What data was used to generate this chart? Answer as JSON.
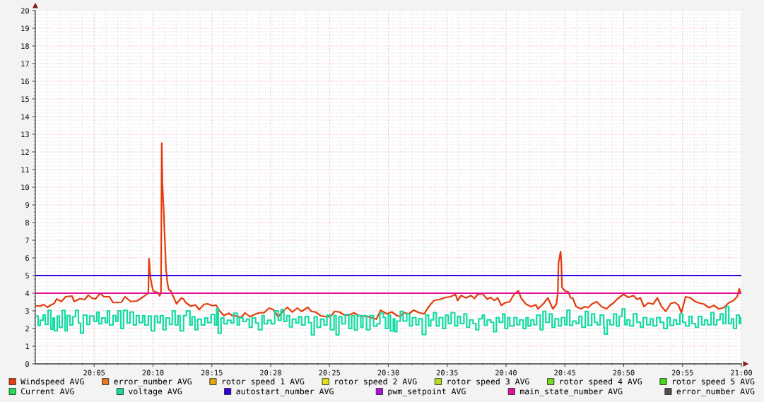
{
  "chart_data": {
    "type": "line",
    "xlim": [
      20.0,
      21.0
    ],
    "xticks": [
      {
        "value": 20.083333,
        "label": "20:05"
      },
      {
        "value": 20.166667,
        "label": "20:10"
      },
      {
        "value": 20.25,
        "label": "20:15"
      },
      {
        "value": 20.333333,
        "label": "20:20"
      },
      {
        "value": 20.416667,
        "label": "20:25"
      },
      {
        "value": 20.5,
        "label": "20:30"
      },
      {
        "value": 20.583333,
        "label": "20:35"
      },
      {
        "value": 20.666667,
        "label": "20:40"
      },
      {
        "value": 20.75,
        "label": "20:45"
      },
      {
        "value": 20.833333,
        "label": "20:50"
      },
      {
        "value": 20.916667,
        "label": "20:55"
      },
      {
        "value": 21.0,
        "label": "21:00"
      }
    ],
    "ylim": [
      0,
      20
    ],
    "yticks": [
      0,
      1,
      2,
      3,
      4,
      5,
      6,
      7,
      8,
      9,
      10,
      11,
      12,
      13,
      14,
      15,
      16,
      17,
      18,
      19,
      20
    ],
    "grid": true,
    "legend": "bottom",
    "series": [
      {
        "name": "Windspeed AVG",
        "color": "#e23d0f",
        "x": [
          20.0,
          20.007,
          20.012,
          20.017,
          20.022,
          20.027,
          20.03,
          20.037,
          20.043,
          20.052,
          20.055,
          20.063,
          20.07,
          20.075,
          20.08,
          20.085,
          20.092,
          20.097,
          20.105,
          20.11,
          20.117,
          20.122,
          20.127,
          20.135,
          20.144,
          20.149,
          20.154,
          20.157,
          20.16,
          20.161,
          20.163,
          20.165,
          20.167,
          20.17,
          20.173,
          20.176,
          20.178,
          20.179,
          20.18,
          20.182,
          20.183,
          20.184,
          20.185,
          20.187,
          20.189,
          20.192,
          20.194,
          20.197,
          20.2,
          20.204,
          20.207,
          20.21,
          20.213,
          20.22,
          20.227,
          20.232,
          20.239,
          20.244,
          20.251,
          20.256,
          20.261,
          20.267,
          20.274,
          20.279,
          20.286,
          20.291,
          20.297,
          20.304,
          20.311,
          20.317,
          20.324,
          20.331,
          20.337,
          20.344,
          20.351,
          20.357,
          20.364,
          20.371,
          20.377,
          20.386,
          20.391,
          20.397,
          20.404,
          20.411,
          20.418,
          20.424,
          20.431,
          20.438,
          20.444,
          20.451,
          20.458,
          20.464,
          20.471,
          20.483,
          20.489,
          20.498,
          20.505,
          20.512,
          20.517,
          20.522,
          20.529,
          20.536,
          20.543,
          20.551,
          20.555,
          20.56,
          20.565,
          20.574,
          20.581,
          20.588,
          20.595,
          20.598,
          20.603,
          20.61,
          20.617,
          20.622,
          20.627,
          20.634,
          20.64,
          20.645,
          20.65,
          20.655,
          20.66,
          20.665,
          20.672,
          20.678,
          20.684,
          20.688,
          20.695,
          20.702,
          20.709,
          20.712,
          20.719,
          20.726,
          20.733,
          20.738,
          20.74,
          20.741,
          20.744,
          20.745,
          20.746,
          20.75,
          20.755,
          20.758,
          20.761,
          20.766,
          20.773,
          20.778,
          20.783,
          20.788,
          20.795,
          20.802,
          20.809,
          20.814,
          20.819,
          20.824,
          20.833,
          20.84,
          20.847,
          20.852,
          20.857,
          20.862,
          20.868,
          20.875,
          20.881,
          20.887,
          20.893,
          20.9,
          20.906,
          20.911,
          20.915,
          20.921,
          20.928,
          20.935,
          20.94,
          20.947,
          20.954,
          20.961,
          20.968,
          20.975,
          20.982,
          20.989,
          20.994,
          20.997,
          20.999
        ],
        "values": [
          3.29,
          3.27,
          3.36,
          3.2,
          3.33,
          3.43,
          3.67,
          3.53,
          3.8,
          3.84,
          3.53,
          3.69,
          3.64,
          3.89,
          3.73,
          3.67,
          4.0,
          3.8,
          3.8,
          3.47,
          3.47,
          3.49,
          3.8,
          3.53,
          3.56,
          3.69,
          3.83,
          3.93,
          4.0,
          5.96,
          4.9,
          4.45,
          4.13,
          4.07,
          4.05,
          3.85,
          4.0,
          12.5,
          10.2,
          8.5,
          7.4,
          6.5,
          5.4,
          4.6,
          4.2,
          4.13,
          3.93,
          3.67,
          3.4,
          3.6,
          3.73,
          3.67,
          3.47,
          3.27,
          3.33,
          3.07,
          3.37,
          3.4,
          3.29,
          3.33,
          3.0,
          2.73,
          2.87,
          2.73,
          2.71,
          2.6,
          2.89,
          2.67,
          2.8,
          2.89,
          2.89,
          3.16,
          3.07,
          2.67,
          3.0,
          3.2,
          2.93,
          3.16,
          2.97,
          3.2,
          2.97,
          2.93,
          2.73,
          2.67,
          2.67,
          2.97,
          2.93,
          2.76,
          2.76,
          2.89,
          2.73,
          2.71,
          2.67,
          2.53,
          3.03,
          2.83,
          2.94,
          2.73,
          2.69,
          2.9,
          2.83,
          3.04,
          2.9,
          2.83,
          3.11,
          3.38,
          3.59,
          3.66,
          3.76,
          3.8,
          3.94,
          3.59,
          3.87,
          3.73,
          3.87,
          3.7,
          3.96,
          3.94,
          3.66,
          3.76,
          3.59,
          3.73,
          3.31,
          3.45,
          3.52,
          3.94,
          4.14,
          3.73,
          3.38,
          3.24,
          3.34,
          3.11,
          3.38,
          3.73,
          3.11,
          3.38,
          4.0,
          5.73,
          6.36,
          5.73,
          4.33,
          4.13,
          4.07,
          3.73,
          3.73,
          3.24,
          3.11,
          3.24,
          3.18,
          3.38,
          3.52,
          3.24,
          3.11,
          3.31,
          3.45,
          3.66,
          3.94,
          3.76,
          3.87,
          3.66,
          3.73,
          3.24,
          3.45,
          3.38,
          3.73,
          3.24,
          2.97,
          3.42,
          3.48,
          3.31,
          2.9,
          3.8,
          3.73,
          3.52,
          3.45,
          3.38,
          3.18,
          3.31,
          3.11,
          3.18,
          3.45,
          3.59,
          3.8,
          4.25,
          4.0
        ]
      },
      {
        "name": "error_number AVG",
        "color": "#e8791a"
      },
      {
        "name": "rotor speed 1 AVG",
        "color": "#e0a90e"
      },
      {
        "name": "rotor speed 2 AVG",
        "color": "#e2e214"
      },
      {
        "name": "rotor speed 3 AVG",
        "color": "#b2e11c"
      },
      {
        "name": "rotor speed 4 AVG",
        "color": "#74d922"
      },
      {
        "name": "rotor speed 5 AVG",
        "color": "#3fdc18"
      },
      {
        "name": "Current AVG",
        "color": "#1fe04f"
      },
      {
        "name": "voltage AVG",
        "color": "#12dba3",
        "type": "step",
        "x": [
          20.002,
          20.004,
          20.007,
          20.011,
          20.014,
          20.018,
          20.022,
          20.025,
          20.027,
          20.031,
          20.034,
          20.038,
          20.042,
          20.045,
          20.049,
          20.053,
          20.057,
          20.061,
          20.064,
          20.068,
          20.073,
          20.077,
          20.083,
          20.087,
          20.09,
          20.094,
          20.099,
          20.102,
          20.105,
          20.11,
          20.114,
          20.117,
          20.121,
          20.125,
          20.13,
          20.134,
          20.139,
          20.143,
          20.147,
          20.152,
          20.155,
          20.16,
          20.164,
          20.169,
          20.173,
          20.177,
          20.181,
          20.185,
          20.19,
          20.194,
          20.198,
          20.202,
          20.205,
          20.21,
          20.214,
          20.219,
          20.222,
          20.226,
          20.23,
          20.235,
          20.24,
          20.244,
          20.249,
          20.254,
          20.257,
          20.259,
          20.263,
          20.267,
          20.272,
          20.277,
          20.281,
          20.286,
          20.289,
          20.294,
          20.299,
          20.303,
          20.307,
          20.312,
          20.316,
          20.321,
          20.324,
          20.329,
          20.334,
          20.339,
          20.344,
          20.348,
          20.352,
          20.356,
          20.36,
          20.364,
          20.369,
          20.373,
          20.377,
          20.382,
          20.387,
          20.391,
          20.395,
          20.399,
          20.404,
          20.409,
          20.413,
          20.418,
          20.423,
          20.426,
          20.43,
          20.434,
          20.439,
          20.444,
          20.448,
          20.452,
          20.456,
          20.461,
          20.464,
          20.469,
          20.474,
          20.479,
          20.484,
          20.488,
          20.493,
          20.496,
          20.5,
          20.503,
          20.507,
          20.509,
          20.512,
          20.517,
          20.521,
          20.526,
          20.53,
          20.534,
          20.539,
          20.543,
          20.548,
          20.553,
          20.557,
          20.56,
          20.564,
          20.568,
          20.572,
          20.577,
          20.581,
          20.585,
          20.589,
          20.594,
          20.598,
          20.602,
          20.607,
          20.611,
          20.615,
          20.62,
          20.624,
          20.628,
          20.633,
          20.636,
          20.64,
          20.645,
          20.649,
          20.653,
          20.657,
          20.662,
          20.665,
          20.669,
          20.672,
          20.678,
          20.682,
          20.686,
          20.691,
          20.695,
          20.698,
          20.702,
          20.706,
          20.71,
          20.715,
          20.719,
          20.723,
          20.728,
          20.732,
          20.736,
          20.741,
          20.745,
          20.75,
          20.753,
          20.757,
          20.761,
          20.766,
          20.77,
          20.774,
          20.779,
          20.783,
          20.788,
          20.792,
          20.796,
          20.8,
          20.805,
          20.806,
          20.81,
          20.814,
          20.819,
          20.823,
          20.827,
          20.831,
          20.835,
          20.838,
          20.842,
          20.847,
          20.852,
          20.857,
          20.861,
          20.866,
          20.871,
          20.875,
          20.88,
          20.885,
          20.89,
          20.895,
          20.899,
          20.904,
          20.908,
          20.913,
          20.917,
          20.921,
          20.926,
          20.93,
          20.935,
          20.939,
          20.944,
          20.948,
          20.952,
          20.957,
          20.961,
          20.965,
          20.97,
          20.974,
          20.978,
          20.982,
          20.986,
          20.989,
          20.993,
          20.997,
          20.999
        ],
        "values": [
          2.71,
          2.17,
          2.47,
          2.76,
          2.23,
          3.03,
          1.96,
          2.6,
          1.87,
          2.71,
          2.07,
          3.03,
          1.87,
          2.73,
          2.2,
          2.67,
          3.03,
          2.31,
          1.73,
          2.76,
          2.23,
          2.71,
          2.4,
          2.93,
          2.27,
          2.6,
          2.33,
          3.0,
          2.2,
          2.73,
          2.4,
          3.0,
          2.0,
          3.03,
          2.31,
          2.93,
          2.2,
          2.73,
          2.33,
          2.73,
          2.2,
          2.71,
          1.87,
          2.71,
          2.33,
          2.73,
          1.93,
          2.6,
          2.23,
          3.0,
          2.2,
          2.73,
          1.87,
          2.73,
          3.0,
          2.2,
          2.67,
          1.93,
          2.53,
          2.2,
          2.6,
          2.33,
          2.8,
          2.2,
          3.13,
          1.73,
          2.6,
          2.27,
          2.47,
          2.31,
          2.87,
          2.2,
          2.6,
          2.4,
          2.53,
          2.07,
          2.6,
          2.31,
          1.93,
          2.73,
          2.27,
          2.47,
          2.27,
          3.0,
          2.47,
          3.07,
          2.4,
          2.73,
          2.09,
          2.53,
          2.31,
          2.67,
          2.2,
          2.67,
          2.33,
          1.64,
          2.67,
          2.07,
          2.53,
          2.2,
          2.76,
          1.93,
          2.73,
          1.64,
          2.67,
          2.27,
          2.8,
          2.0,
          2.73,
          1.91,
          2.73,
          2.07,
          2.73,
          1.93,
          2.73,
          2.13,
          2.27,
          2.87,
          2.62,
          2.0,
          2.76,
          1.86,
          2.55,
          1.82,
          2.42,
          2.97,
          2.42,
          2.83,
          2.14,
          2.62,
          2.21,
          2.55,
          1.66,
          2.76,
          2.14,
          2.49,
          2.9,
          2.14,
          2.62,
          2.0,
          2.76,
          2.28,
          2.9,
          2.14,
          2.69,
          2.28,
          2.83,
          2.07,
          2.49,
          2.28,
          1.93,
          2.55,
          2.76,
          2.18,
          2.49,
          2.35,
          1.82,
          2.62,
          2.35,
          2.83,
          2.0,
          2.62,
          2.14,
          2.62,
          2.21,
          2.49,
          2.0,
          2.62,
          2.14,
          2.49,
          2.21,
          2.76,
          1.93,
          2.97,
          2.35,
          2.83,
          2.07,
          2.55,
          2.14,
          2.62,
          2.21,
          3.04,
          2.18,
          2.42,
          2.28,
          2.69,
          2.07,
          2.97,
          2.18,
          2.83,
          2.35,
          2.21,
          2.76,
          2.07,
          1.68,
          2.49,
          2.21,
          2.83,
          2.14,
          2.69,
          3.11,
          2.21,
          2.49,
          2.14,
          2.83,
          2.35,
          2.07,
          2.62,
          2.21,
          2.55,
          2.14,
          2.62,
          2.35,
          2.0,
          2.62,
          2.18,
          2.49,
          2.24,
          2.83,
          2.35,
          2.14,
          2.69,
          2.28,
          2.07,
          2.69,
          2.21,
          2.49,
          2.21,
          2.9,
          2.21,
          2.49,
          2.83,
          2.28,
          3.24,
          2.28,
          2.55,
          2.0,
          2.76,
          2.28,
          2.62
        ]
      },
      {
        "name": "autostart_number AVG",
        "color": "#3300dd",
        "x": [
          20.0,
          21.0
        ],
        "values": [
          5,
          5
        ]
      },
      {
        "name": "pwm_setpoint AVG",
        "color": "#b010e0"
      },
      {
        "name": "main_state_number AVG",
        "color": "#e0109a",
        "x": [
          20.0,
          21.0
        ],
        "values": [
          4,
          4
        ]
      },
      {
        "name": "error_number AVG",
        "color": "#505050"
      }
    ]
  }
}
